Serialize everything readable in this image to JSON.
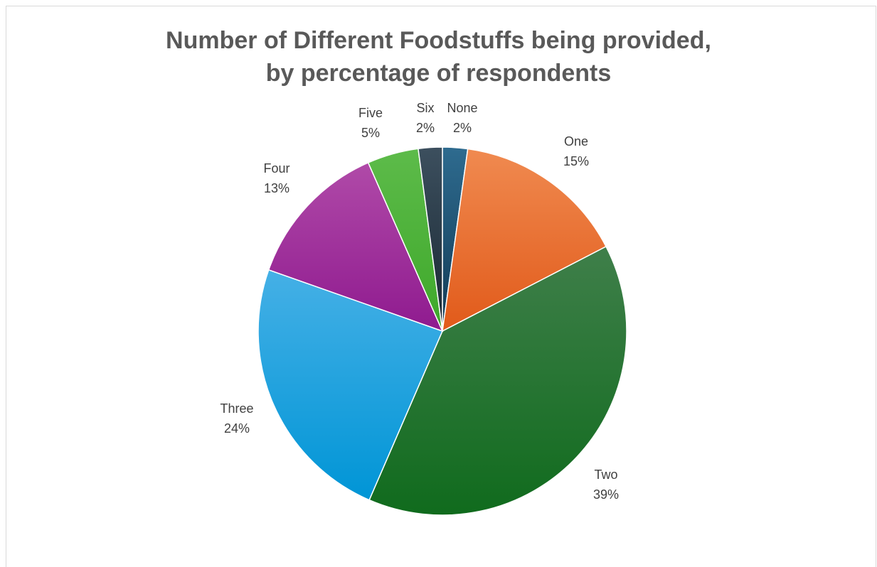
{
  "chart_data": {
    "type": "pie",
    "title_lines": [
      "Number of Different Foodstuffs being provided,",
      "by percentage of respondents"
    ],
    "slices": [
      {
        "label": "None",
        "percent_label": "2%",
        "value": 2.2,
        "color": "#2e6b8f",
        "color_dark": "#123a55"
      },
      {
        "label": "One",
        "percent_label": "15%",
        "value": 15.2,
        "color": "#f08a50",
        "color_dark": "#e15a1a"
      },
      {
        "label": "Two",
        "percent_label": "39%",
        "value": 39.1,
        "color": "#3f7f4a",
        "color_dark": "#106b1d"
      },
      {
        "label": "Three",
        "percent_label": "24%",
        "value": 23.9,
        "color": "#45b0e6",
        "color_dark": "#0095d6"
      },
      {
        "label": "Four",
        "percent_label": "13%",
        "value": 13.0,
        "color": "#b04aa8",
        "color_dark": "#8f1a8f"
      },
      {
        "label": "Five",
        "percent_label": "5%",
        "value": 4.5,
        "color": "#5dbb4a",
        "color_dark": "#3ea82a"
      },
      {
        "label": "Six",
        "percent_label": "2%",
        "value": 2.1,
        "color": "#3c4f5e",
        "color_dark": "#1a2833"
      }
    ],
    "legend": "none",
    "data_labels": "category and percentage"
  }
}
